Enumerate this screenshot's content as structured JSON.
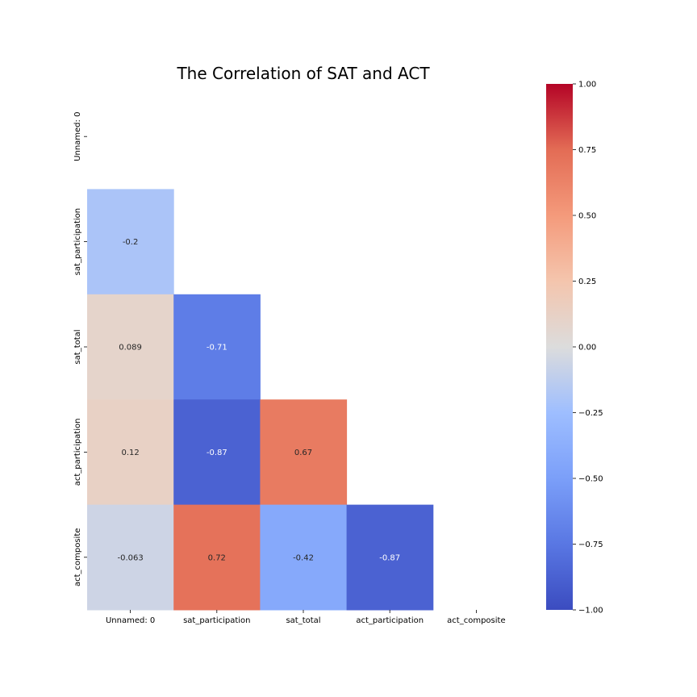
{
  "chart_data": {
    "type": "heatmap",
    "title": "The Correlation of SAT and ACT",
    "xlabel": "",
    "ylabel": "",
    "x_categories": [
      "Unnamed: 0",
      "sat_participation",
      "sat_total",
      "act_participation",
      "act_composite"
    ],
    "y_categories": [
      "Unnamed: 0",
      "sat_participation",
      "sat_total",
      "act_participation",
      "act_composite"
    ],
    "mask": "upper-triangle including diagonal",
    "cells": [
      {
        "row": "sat_participation",
        "col": "Unnamed: 0",
        "value": -0.2,
        "label": "-0.2"
      },
      {
        "row": "sat_total",
        "col": "Unnamed: 0",
        "value": 0.089,
        "label": "0.089"
      },
      {
        "row": "sat_total",
        "col": "sat_participation",
        "value": -0.71,
        "label": "-0.71"
      },
      {
        "row": "act_participation",
        "col": "Unnamed: 0",
        "value": 0.12,
        "label": "0.12"
      },
      {
        "row": "act_participation",
        "col": "sat_participation",
        "value": -0.87,
        "label": "-0.87"
      },
      {
        "row": "act_participation",
        "col": "sat_total",
        "value": 0.67,
        "label": "0.67"
      },
      {
        "row": "act_composite",
        "col": "Unnamed: 0",
        "value": -0.063,
        "label": "-0.063"
      },
      {
        "row": "act_composite",
        "col": "sat_participation",
        "value": 0.72,
        "label": "0.72"
      },
      {
        "row": "act_composite",
        "col": "sat_total",
        "value": -0.42,
        "label": "-0.42"
      },
      {
        "row": "act_composite",
        "col": "act_participation",
        "value": -0.87,
        "label": "-0.87"
      }
    ],
    "colorbar": {
      "colormap": "coolwarm",
      "vmin": -1.0,
      "vmax": 1.0,
      "ticks": [
        -1.0,
        -0.75,
        -0.5,
        -0.25,
        0.0,
        0.25,
        0.5,
        0.75,
        1.0
      ],
      "tick_labels": [
        "−1.00",
        "−0.75",
        "−0.50",
        "−0.25",
        "0.00",
        "0.25",
        "0.50",
        "0.75",
        "1.00"
      ]
    }
  }
}
